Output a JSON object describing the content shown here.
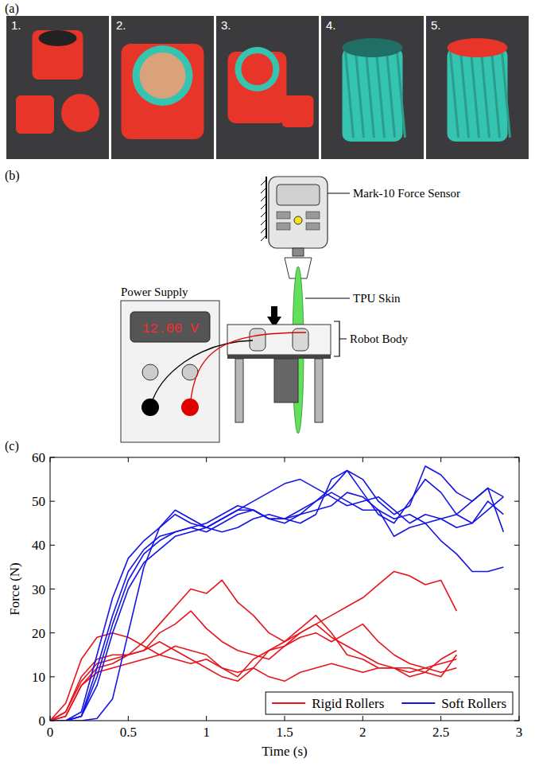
{
  "panel_labels": [
    "(a)",
    "(b)",
    "(c)"
  ],
  "photos": {
    "labels": [
      "1.",
      "2.",
      "3.",
      "4.",
      "5."
    ]
  },
  "diagram": {
    "force_sensor": "Mark-10 Force Sensor",
    "skin": "TPU Skin",
    "power_supply": "Power Supply",
    "voltage_display": "12.00 V",
    "robot_body": "Robot Body"
  },
  "chart_data": {
    "type": "line",
    "x_label": "Time (s)",
    "y_label": "Force (N)",
    "xlim": [
      0,
      3
    ],
    "xticks": [
      0,
      0.5,
      1,
      1.5,
      2,
      2.5,
      3
    ],
    "ylim": [
      0,
      60
    ],
    "yticks": [
      0,
      10,
      20,
      30,
      40,
      50,
      60
    ],
    "grid": false,
    "legend": "lower right",
    "series": [
      {
        "name": "Rigid Rollers",
        "color": "#e8141c",
        "x": [
          0,
          0.1,
          0.2,
          0.3,
          0.4,
          0.5,
          0.6,
          0.7,
          0.8,
          0.9,
          1,
          1.1,
          1.2,
          1.3,
          1.4,
          1.5,
          1.6,
          1.7,
          1.8,
          1.9,
          2,
          2.1,
          2.2,
          2.3,
          2.4,
          2.5,
          2.6
        ],
        "values": [
          0,
          1,
          8,
          12,
          13,
          15,
          18,
          22,
          26,
          30,
          29,
          32,
          27,
          24,
          20,
          18,
          20,
          22,
          24,
          26,
          28,
          31,
          34,
          33,
          31,
          32,
          25
        ]
      },
      {
        "name": "Rigid Rollers",
        "color": "#e8141c",
        "x": [
          0,
          0.1,
          0.2,
          0.3,
          0.4,
          0.5,
          0.6,
          0.7,
          0.8,
          0.9,
          1,
          1.1,
          1.2,
          1.3,
          1.4,
          1.5,
          1.6,
          1.7,
          1.8,
          1.9,
          2,
          2.1,
          2.2,
          2.3,
          2.4,
          2.5,
          2.6
        ],
        "values": [
          0,
          4,
          14,
          19,
          20,
          19,
          17,
          15,
          14,
          13,
          14,
          12,
          11,
          12,
          10,
          9,
          11,
          12,
          13,
          12,
          11,
          12,
          12,
          10,
          11,
          14,
          16
        ]
      },
      {
        "name": "Rigid Rollers",
        "color": "#e8141c",
        "x": [
          0,
          0.1,
          0.2,
          0.3,
          0.4,
          0.5,
          0.6,
          0.7,
          0.8,
          0.9,
          1,
          1.1,
          1.2,
          1.3,
          1.4,
          1.5,
          1.6,
          1.7,
          1.8,
          1.9,
          2,
          2.1,
          2.2,
          2.3,
          2.4,
          2.5,
          2.6
        ],
        "values": [
          0,
          2,
          10,
          14,
          15,
          15,
          16,
          20,
          22,
          25,
          21,
          18,
          16,
          15,
          14,
          17,
          20,
          22,
          19,
          17,
          15,
          13,
          12,
          11,
          12,
          13,
          14
        ]
      },
      {
        "name": "Rigid Rollers",
        "color": "#e8141c",
        "x": [
          0,
          0.1,
          0.2,
          0.3,
          0.4,
          0.5,
          0.6,
          0.7,
          0.8,
          0.9,
          1,
          1.1,
          1.2,
          1.3,
          1.4,
          1.5,
          1.6,
          1.7,
          1.8,
          1.9,
          2,
          2.1,
          2.2,
          2.3,
          2.4,
          2.5,
          2.6
        ],
        "values": [
          0,
          1,
          8,
          11,
          12,
          13,
          14,
          15,
          17,
          16,
          15,
          12,
          10,
          14,
          16,
          17,
          19,
          20,
          18,
          20,
          22,
          18,
          15,
          13,
          12,
          11,
          12
        ]
      },
      {
        "name": "Rigid Rollers",
        "color": "#e8141c",
        "x": [
          0,
          0.1,
          0.2,
          0.3,
          0.4,
          0.5,
          0.6,
          0.7,
          0.8,
          0.9,
          1,
          1.1,
          1.2,
          1.3,
          1.4,
          1.5,
          1.6,
          1.7,
          1.8,
          1.9,
          2,
          2.1,
          2.2,
          2.3,
          2.4,
          2.5,
          2.6
        ],
        "values": [
          0,
          2,
          9,
          13,
          14,
          15,
          16,
          18,
          16,
          14,
          12,
          10,
          9,
          12,
          16,
          18,
          21,
          24,
          20,
          15,
          14,
          12,
          12,
          12,
          11,
          10,
          15
        ]
      },
      {
        "name": "Soft Rollers",
        "color": "#1414e6",
        "x": [
          0,
          0.1,
          0.2,
          0.3,
          0.4,
          0.5,
          0.6,
          0.7,
          0.8,
          0.9,
          1,
          1.1,
          1.2,
          1.3,
          1.4,
          1.5,
          1.6,
          1.7,
          1.8,
          1.9,
          2,
          2.1,
          2.2,
          2.3,
          2.4,
          2.5,
          2.6,
          2.7,
          2.8,
          2.9
        ],
        "values": [
          0,
          0,
          2,
          15,
          28,
          37,
          41,
          44,
          47,
          45,
          44,
          46,
          48,
          50,
          52,
          54,
          55,
          53,
          51,
          49,
          50,
          51,
          48,
          45,
          47,
          46,
          44,
          45,
          48,
          51
        ]
      },
      {
        "name": "Soft Rollers",
        "color": "#1414e6",
        "x": [
          0,
          0.1,
          0.2,
          0.3,
          0.4,
          0.5,
          0.6,
          0.7,
          0.8,
          0.9,
          1,
          1.1,
          1.2,
          1.3,
          1.4,
          1.5,
          1.6,
          1.7,
          1.8,
          1.9,
          2,
          2.1,
          2.2,
          2.3,
          2.4,
          2.5,
          2.6,
          2.7,
          2.8,
          2.9
        ],
        "values": [
          0,
          0,
          1,
          10,
          22,
          32,
          38,
          41,
          43,
          44,
          43,
          45,
          47,
          48,
          46,
          45,
          47,
          50,
          53,
          57,
          55,
          50,
          47,
          49,
          58,
          56,
          52,
          50,
          53,
          43
        ]
      },
      {
        "name": "Soft Rollers",
        "color": "#1414e6",
        "x": [
          0,
          0.1,
          0.2,
          0.3,
          0.4,
          0.5,
          0.6,
          0.7,
          0.8,
          0.9,
          1,
          1.1,
          1.2,
          1.3,
          1.4,
          1.5,
          1.6,
          1.7,
          1.8,
          1.9,
          2,
          2.1,
          2.2,
          2.3,
          2.4,
          2.5,
          2.6,
          2.7,
          2.8,
          2.9
        ],
        "values": [
          0,
          0,
          0,
          0.5,
          5,
          20,
          35,
          44,
          48,
          46,
          44,
          43,
          44,
          46,
          47,
          46,
          47,
          48,
          49,
          52,
          51,
          48,
          42,
          44,
          45,
          41,
          38,
          34,
          34,
          35
        ]
      },
      {
        "name": "Soft Rollers",
        "color": "#1414e6",
        "x": [
          0,
          0.1,
          0.2,
          0.3,
          0.4,
          0.5,
          0.6,
          0.7,
          0.8,
          0.9,
          1,
          1.1,
          1.2,
          1.3,
          1.4,
          1.5,
          1.6,
          1.7,
          1.8,
          1.9,
          2,
          2.1,
          2.2,
          2.3,
          2.4,
          2.5,
          2.6,
          2.7,
          2.8,
          2.9
        ],
        "values": [
          0,
          0,
          1,
          12,
          24,
          34,
          39,
          42,
          43,
          44,
          45,
          47,
          49,
          48,
          46,
          46,
          45,
          47,
          55,
          57,
          52,
          47,
          45,
          50,
          55,
          52,
          47,
          45,
          50,
          47
        ]
      },
      {
        "name": "Soft Rollers",
        "color": "#1414e6",
        "x": [
          0,
          0.1,
          0.2,
          0.3,
          0.4,
          0.5,
          0.6,
          0.7,
          0.8,
          0.9,
          1,
          1.1,
          1.2,
          1.3,
          1.4,
          1.5,
          1.6,
          1.7,
          1.8,
          1.9,
          2,
          2.1,
          2.2,
          2.3,
          2.4,
          2.5,
          2.6,
          2.7,
          2.8,
          2.9
        ],
        "values": [
          0,
          0,
          1,
          8,
          20,
          30,
          36,
          39,
          42,
          43,
          44,
          46,
          48,
          48,
          46,
          46,
          48,
          50,
          52,
          50,
          48,
          48,
          46,
          47,
          45,
          46,
          47,
          50,
          53,
          51
        ]
      }
    ]
  }
}
